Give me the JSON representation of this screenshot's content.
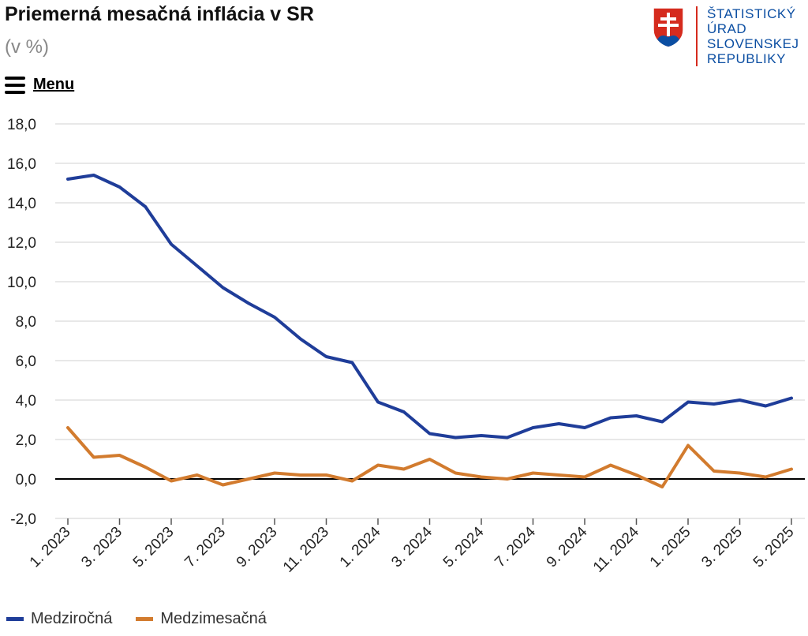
{
  "header": {
    "title": "Priemerná mesačná inflácia v SR",
    "subtitle": "(v %)",
    "menu_label": "Menu"
  },
  "logo": {
    "lines": [
      "ŠTATISTICKÝ",
      "ÚRAD",
      "SLOVENSKEJ",
      "REPUBLIKY"
    ],
    "text_color": "#0b4ea2",
    "accent_color": "#d52b1e"
  },
  "chart_data": {
    "type": "line",
    "title": "Priemerná mesačná inflácia v SR",
    "ylabel": "(v %)",
    "xlabel": "",
    "ylim": [
      -2.0,
      18.0
    ],
    "yticks": [
      "-2,0",
      "0,0",
      "2,0",
      "4,0",
      "6,0",
      "8,0",
      "10,0",
      "12,0",
      "14,0",
      "16,0",
      "18,0"
    ],
    "x_tick_labels": [
      "1. 2023",
      "3. 2023",
      "5. 2023",
      "7. 2023",
      "9. 2023",
      "11. 2023",
      "1. 2024",
      "3. 2024",
      "5. 2024",
      "7. 2024",
      "9. 2024",
      "11. 2024",
      "1. 2025",
      "3. 2025",
      "5. 2025"
    ],
    "categories": [
      "1. 2023",
      "2. 2023",
      "3. 2023",
      "4. 2023",
      "5. 2023",
      "6. 2023",
      "7. 2023",
      "8. 2023",
      "9. 2023",
      "10. 2023",
      "11. 2023",
      "12. 2023",
      "1. 2024",
      "2. 2024",
      "3. 2024",
      "4. 2024",
      "5. 2024",
      "6. 2024",
      "7. 2024",
      "8. 2024",
      "9. 2024",
      "10. 2024",
      "11. 2024",
      "12. 2024",
      "1. 2025",
      "2. 2025",
      "3. 2025",
      "4. 2025",
      "5. 2025"
    ],
    "series": [
      {
        "name": "Medziročná",
        "color": "#1f3d99",
        "values": [
          15.2,
          15.4,
          14.8,
          13.8,
          11.9,
          10.8,
          9.7,
          8.9,
          8.2,
          7.1,
          6.2,
          5.9,
          3.9,
          3.4,
          2.3,
          2.1,
          2.2,
          2.1,
          2.6,
          2.8,
          2.6,
          3.1,
          3.2,
          2.9,
          3.9,
          3.8,
          4.0,
          3.7,
          4.1
        ]
      },
      {
        "name": "Medzimesačná",
        "color": "#d27b2e",
        "values": [
          2.6,
          1.1,
          1.2,
          0.6,
          -0.1,
          0.2,
          -0.3,
          0.0,
          0.3,
          0.2,
          0.2,
          -0.1,
          0.7,
          0.5,
          1.0,
          0.3,
          0.1,
          0.0,
          0.3,
          0.2,
          0.1,
          0.7,
          0.2,
          -0.4,
          1.7,
          0.4,
          0.3,
          0.1,
          0.5
        ]
      }
    ],
    "legend_position": "bottom-left"
  }
}
